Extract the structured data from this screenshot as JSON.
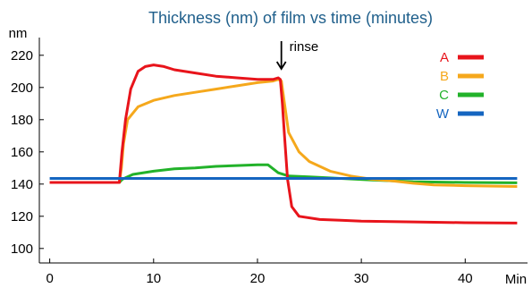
{
  "chart_data": {
    "type": "line",
    "title": "Thickness (nm) of film vs time (minutes)",
    "ylabel": "nm",
    "xlabel": "Min",
    "xlim": [
      -1,
      46
    ],
    "ylim": [
      91,
      231
    ],
    "x_ticks": [
      0,
      10,
      20,
      30,
      40
    ],
    "x_tick_labels": [
      "0",
      "10",
      "20",
      "30",
      "40"
    ],
    "y_ticks": [
      100,
      120,
      140,
      160,
      180,
      200,
      220
    ],
    "y_tick_labels": [
      "100",
      "120",
      "140",
      "160",
      "180",
      "200",
      "220"
    ],
    "grid": false,
    "legend_position": "top-right",
    "annotation": {
      "text": "rinse",
      "x": 22.3,
      "y": 206
    },
    "series": [
      {
        "name": "A",
        "color": "#e8141b",
        "points": [
          [
            0,
            141
          ],
          [
            6.7,
            141
          ],
          [
            6.95,
            160
          ],
          [
            7.3,
            180
          ],
          [
            7.8,
            199
          ],
          [
            8.5,
            210
          ],
          [
            9.2,
            213
          ],
          [
            10,
            214
          ],
          [
            11,
            213
          ],
          [
            12,
            211
          ],
          [
            14,
            209
          ],
          [
            16,
            207
          ],
          [
            18,
            206
          ],
          [
            20,
            205
          ],
          [
            21.5,
            205
          ],
          [
            22.0,
            206
          ],
          [
            22.2,
            205
          ],
          [
            22.4,
            190
          ],
          [
            22.6,
            170
          ],
          [
            22.9,
            143
          ],
          [
            23.3,
            126
          ],
          [
            24,
            120
          ],
          [
            26,
            118
          ],
          [
            28,
            117.5
          ],
          [
            30,
            117
          ],
          [
            35,
            116.5
          ],
          [
            40,
            116
          ],
          [
            45,
            115.8
          ]
        ]
      },
      {
        "name": "B",
        "color": "#f5a81c",
        "points": [
          [
            0,
            141
          ],
          [
            6.7,
            141
          ],
          [
            6.9,
            150
          ],
          [
            7.1,
            165
          ],
          [
            7.5,
            180
          ],
          [
            8.5,
            188
          ],
          [
            10,
            192
          ],
          [
            12,
            195
          ],
          [
            14,
            197
          ],
          [
            16,
            199
          ],
          [
            18,
            201
          ],
          [
            20,
            203
          ],
          [
            21.5,
            204
          ],
          [
            22.0,
            205
          ],
          [
            22.3,
            204
          ],
          [
            22.6,
            190
          ],
          [
            23,
            172
          ],
          [
            24,
            160
          ],
          [
            25,
            154
          ],
          [
            27,
            148
          ],
          [
            29,
            145
          ],
          [
            31,
            143
          ],
          [
            33,
            142
          ],
          [
            35,
            140.5
          ],
          [
            37,
            139.5
          ],
          [
            40,
            139
          ],
          [
            45,
            138.5
          ]
        ]
      },
      {
        "name": "C",
        "color": "#22b22a",
        "points": [
          [
            0,
            141
          ],
          [
            6.7,
            141
          ],
          [
            7.0,
            143
          ],
          [
            8,
            146
          ],
          [
            10,
            148
          ],
          [
            12,
            149.5
          ],
          [
            14,
            150
          ],
          [
            16,
            151
          ],
          [
            18,
            151.5
          ],
          [
            20,
            152
          ],
          [
            21,
            152
          ],
          [
            22,
            147
          ],
          [
            23,
            145
          ],
          [
            25,
            144.5
          ],
          [
            28,
            143.5
          ],
          [
            31,
            142.5
          ],
          [
            35,
            141.5
          ],
          [
            40,
            141
          ],
          [
            45,
            140.8
          ]
        ]
      },
      {
        "name": "W",
        "color": "#1565c0",
        "points": [
          [
            0,
            143.5
          ],
          [
            10,
            143.5
          ],
          [
            20,
            143.5
          ],
          [
            30,
            143.5
          ],
          [
            40,
            143.5
          ],
          [
            45,
            143.5
          ]
        ]
      }
    ]
  }
}
